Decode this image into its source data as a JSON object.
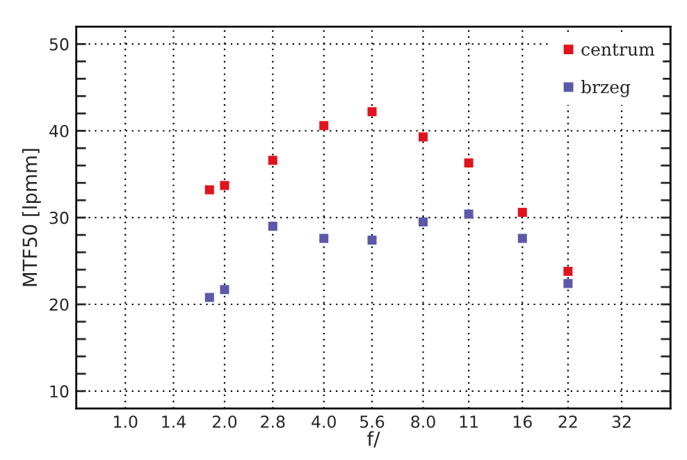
{
  "chart_data": {
    "type": "scatter",
    "xlabel": "f/",
    "ylabel": "MTF50 [lpmm]",
    "x": [
      1.8,
      2.0,
      2.8,
      4.0,
      5.6,
      8.0,
      11,
      16,
      22
    ],
    "series": [
      {
        "name": "centrum",
        "color": "#e0141e",
        "values": [
          33.2,
          33.7,
          36.6,
          40.6,
          42.2,
          39.3,
          36.3,
          30.6,
          23.8
        ]
      },
      {
        "name": "brzeg",
        "color": "#5a5aa8",
        "values": [
          20.8,
          21.7,
          29.0,
          27.6,
          27.4,
          29.5,
          30.4,
          27.6,
          22.4
        ]
      }
    ],
    "log": "x",
    "xlim": [
      0.71,
      45
    ],
    "ylim": [
      8,
      52
    ],
    "xticks": [
      {
        "value": 1,
        "label": "1.0"
      },
      1.4,
      {
        "value": 2,
        "label": "2.0"
      },
      2.8,
      {
        "value": 4,
        "label": "4.0"
      },
      5.6,
      {
        "value": 8,
        "label": "8.0"
      },
      11,
      16,
      22,
      32
    ],
    "yticks": [
      10,
      {
        "value": 12,
        "label": null
      },
      {
        "value": 14,
        "label": null
      },
      {
        "value": 16,
        "label": null
      },
      {
        "value": 18,
        "label": null
      },
      20,
      {
        "value": 22,
        "label": null
      },
      {
        "value": 24,
        "label": null
      },
      {
        "value": 26,
        "label": null
      },
      {
        "value": 28,
        "label": null
      },
      30,
      {
        "value": 32,
        "label": null
      },
      {
        "value": 34,
        "label": null
      },
      {
        "value": 36,
        "label": null
      },
      {
        "value": 38,
        "label": null
      },
      40,
      {
        "value": 42,
        "label": null
      },
      {
        "value": 44,
        "label": null
      },
      {
        "value": 46,
        "label": null
      },
      {
        "value": 48,
        "label": null
      },
      50
    ],
    "grid": true,
    "legend": "top right",
    "marker": "square"
  }
}
